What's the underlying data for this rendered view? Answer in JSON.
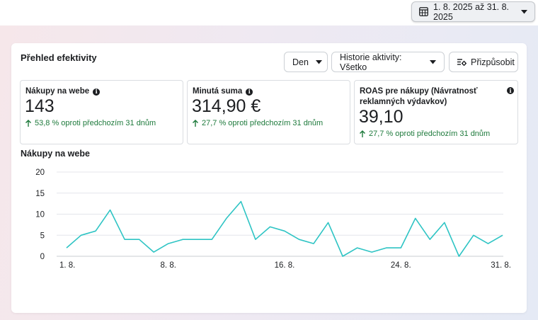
{
  "header": {
    "date_range_label": "1. 8. 2025 až 31. 8. 2025",
    "calendar_icon": "calendar-icon",
    "caret_icon": "caret-down-icon"
  },
  "panel": {
    "title": "Přehled efektivity",
    "controls": {
      "granularity": "Den",
      "activity_history": "Historie aktivity: Všetko",
      "customize": "Přizpůsobit"
    }
  },
  "metrics": [
    {
      "title": "Nákupy na webe",
      "value": "143",
      "delta": "53,8 % oproti předchozím 31 dnům"
    },
    {
      "title": "Minutá suma",
      "value": "314,90 €",
      "delta": "27,7 % oproti předchozím 31 dnům"
    },
    {
      "title": "ROAS pre nákupy (Návratnosť reklamných výdavkov)",
      "value": "39,10",
      "delta": "27,7 % oproti předchozím 31 dnům"
    }
  ],
  "colors": {
    "line": "#2ec4c4",
    "positive": "#1e7a3c",
    "grid": "#e4e6eb"
  },
  "chart_data": {
    "type": "line",
    "title": "Nákupy na webe",
    "xlabel": "",
    "ylabel": "",
    "ylim": [
      0,
      20
    ],
    "yticks": [
      0,
      5,
      10,
      15,
      20
    ],
    "grid": true,
    "x_tick_labels": [
      "1. 8.",
      "8. 8.",
      "16. 8.",
      "24. 8.",
      "31. 8."
    ],
    "x_tick_days": [
      1,
      8,
      16,
      24,
      31
    ],
    "x": [
      1,
      2,
      3,
      4,
      5,
      6,
      7,
      8,
      9,
      10,
      11,
      12,
      13,
      14,
      15,
      16,
      17,
      18,
      19,
      20,
      21,
      22,
      23,
      24,
      25,
      26,
      27,
      28,
      29,
      30,
      31
    ],
    "series": [
      {
        "values": [
          2,
          5,
          6,
          11,
          4,
          4,
          1,
          3,
          4,
          4,
          4,
          9,
          13,
          4,
          7,
          6,
          4,
          3,
          8,
          0,
          2,
          1,
          2,
          2,
          9,
          4,
          8,
          0,
          5,
          3,
          5
        ]
      }
    ]
  }
}
